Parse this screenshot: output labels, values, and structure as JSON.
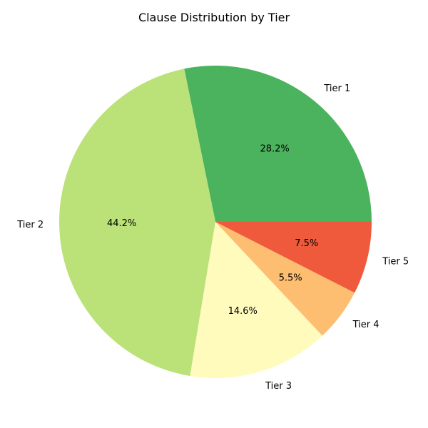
{
  "chart_data": {
    "type": "pie",
    "title": "Clause Distribution by Tier",
    "start_angle_deg": 0,
    "direction": "counterclockwise",
    "slices": [
      {
        "label": "Tier 1",
        "value": 28.2,
        "pct_label": "28.2%",
        "color": "#4bb25d"
      },
      {
        "label": "Tier 2",
        "value": 44.2,
        "pct_label": "44.2%",
        "color": "#bae278"
      },
      {
        "label": "Tier 3",
        "value": 14.6,
        "pct_label": "14.6%",
        "color": "#fefbbd"
      },
      {
        "label": "Tier 4",
        "value": 5.5,
        "pct_label": "5.5%",
        "color": "#fdbe71"
      },
      {
        "label": "Tier 5",
        "value": 7.5,
        "pct_label": "7.5%",
        "color": "#ee5a3b"
      }
    ]
  }
}
